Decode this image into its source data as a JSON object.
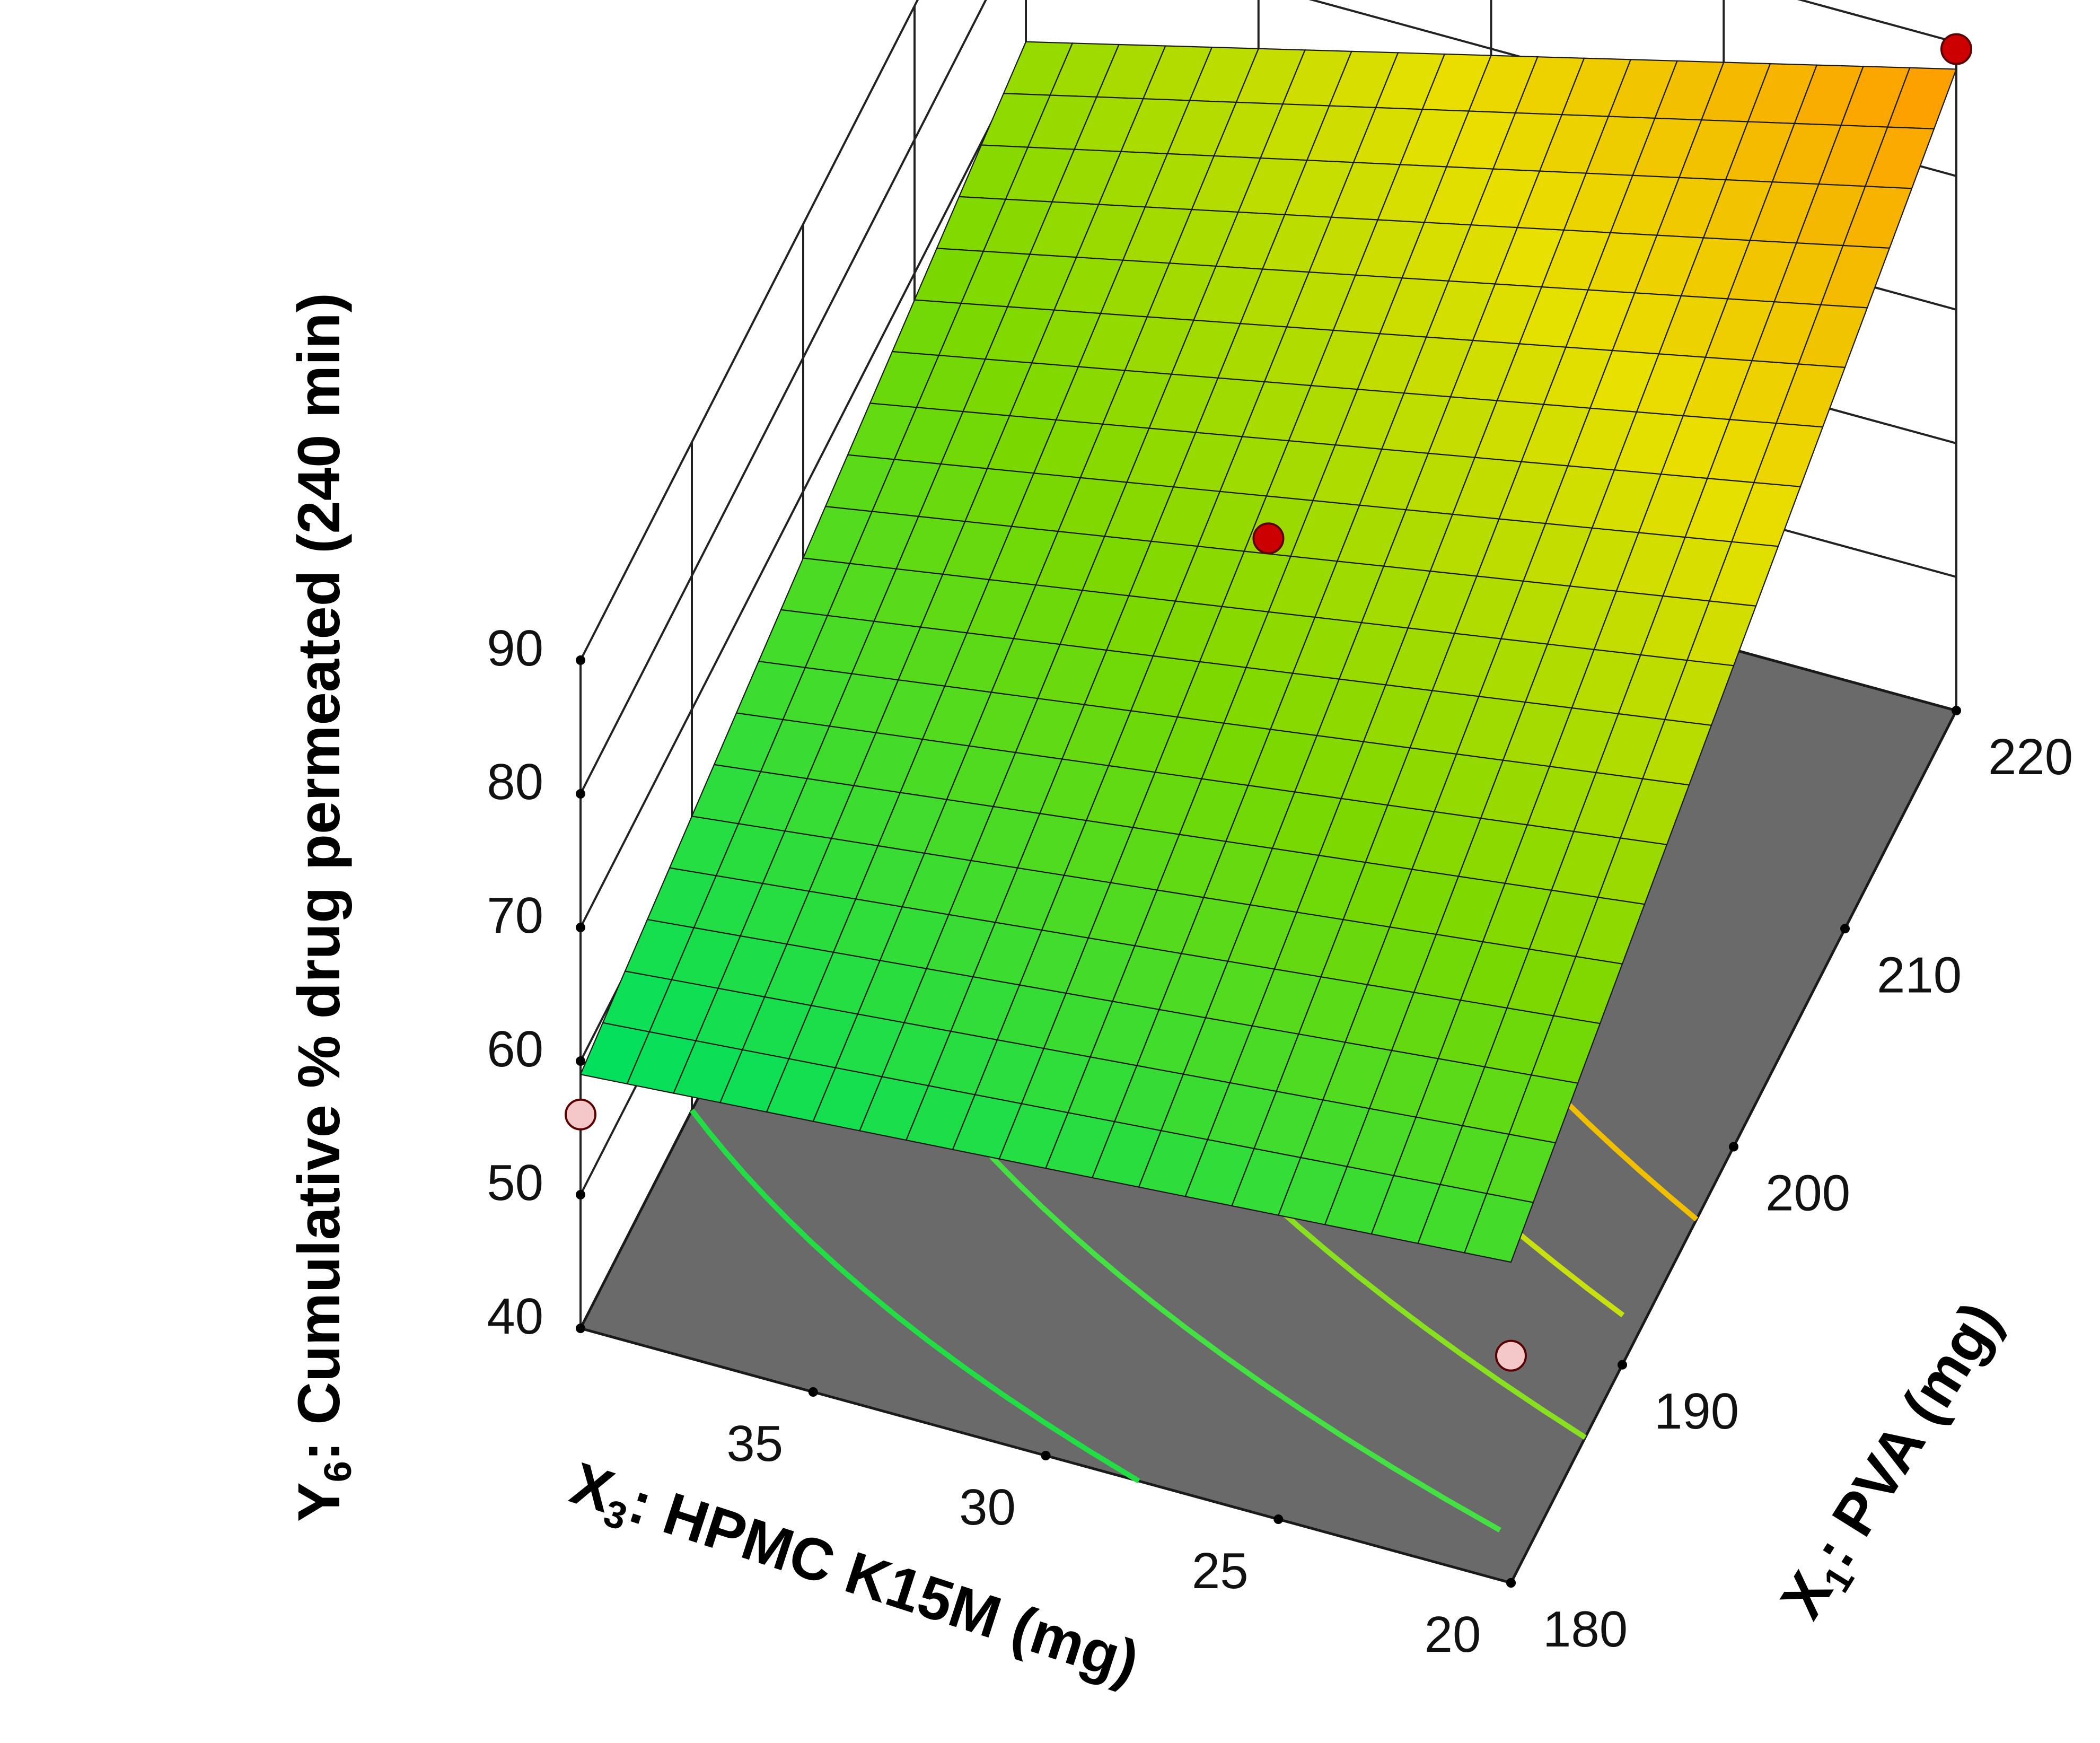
{
  "chart_data": {
    "type": "surface3d",
    "title": "",
    "z_axis": {
      "label": "Y",
      "label_sub": "6",
      "label_rest": ": Cumulative % drug permeated (240 min)",
      "range": [
        40,
        90
      ],
      "ticks": [
        "40",
        "50",
        "60",
        "70",
        "80",
        "90"
      ]
    },
    "x_axis": {
      "label": "X",
      "label_sub": "3",
      "label_rest": ": HPMC K15M (mg)",
      "range": [
        20,
        40
      ],
      "ticks": [
        "35",
        "30",
        "25",
        "20"
      ],
      "tick_values": [
        35,
        30,
        25,
        20
      ]
    },
    "y_axis": {
      "label": "X",
      "label_sub": "1",
      "label_rest": ": PVA (mg)",
      "range": [
        180,
        220
      ],
      "ticks": [
        "180",
        "190",
        "200",
        "210",
        "220"
      ],
      "tick_values": [
        180,
        190,
        200,
        210,
        220
      ]
    },
    "surface": {
      "corners": [
        {
          "hpmc": 40,
          "pva": 180,
          "y": 59
        },
        {
          "hpmc": 20,
          "pva": 180,
          "y": 64
        },
        {
          "hpmc": 40,
          "pva": 220,
          "y": 71
        },
        {
          "hpmc": 20,
          "pva": 220,
          "y": 88
        }
      ],
      "mesh_divisions": 20,
      "colormap": [
        "#00e060",
        "#7ad800",
        "#e8e000",
        "#ff9a00"
      ]
    },
    "design_points": [
      {
        "hpmc": 20,
        "pva": 220,
        "y": 89.5,
        "position": "above",
        "color": "#cc0000"
      },
      {
        "hpmc": 30,
        "pva": 200,
        "y": 76,
        "position": "above",
        "color": "#cc0000"
      },
      {
        "hpmc": 40,
        "pva": 180,
        "y": 56,
        "position": "below",
        "color": "#f4c8c8"
      },
      {
        "hpmc": 20,
        "pva": 180,
        "y": 57,
        "position": "below",
        "color": "#f4c8c8"
      }
    ],
    "floor_color": "#6a6a6a",
    "contours": [
      {
        "color": "#22dd44"
      },
      {
        "color": "#44e044"
      },
      {
        "color": "#88e020"
      },
      {
        "color": "#c8e010"
      },
      {
        "color": "#f0c000"
      }
    ],
    "grid": true
  }
}
